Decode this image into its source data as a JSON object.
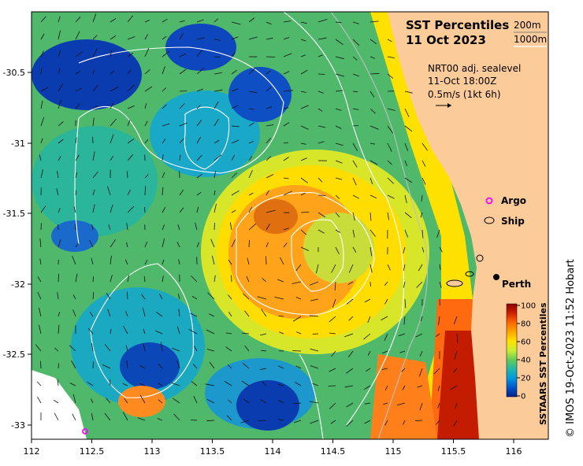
{
  "title": {
    "line1": "SST Percentiles",
    "line2": "11 Oct 2023"
  },
  "depth_key": {
    "shallow": "200m",
    "deep": "1000m"
  },
  "current_info": {
    "line1": "NRT00 adj. sealevel",
    "line2": "11-Oct 18:00Z",
    "line3": "0.5m/s (1kt 6h)"
  },
  "legend": {
    "argo": "Argo",
    "ship": "Ship"
  },
  "place": {
    "name": "Perth",
    "lon": 115.86,
    "lat": -31.95
  },
  "colorbar": {
    "label": "SSTAARS SST Percentiles",
    "ticks": [
      "100",
      "80",
      "60",
      "40",
      "20",
      "0"
    ],
    "colors": [
      "#8b0000",
      "#cc2200",
      "#ff6600",
      "#ffa500",
      "#ffe000",
      "#ccee33",
      "#66cc55",
      "#22b8a8",
      "#0099dd",
      "#0055cc",
      "#001f8c"
    ]
  },
  "credit": "© IMOS 19-Oct-2023 11:52 Hobart",
  "axes": {
    "x_ticks": [
      "112",
      "112.5",
      "113",
      "113.5",
      "114",
      "114.5",
      "115",
      "115.5",
      "116"
    ],
    "y_ticks": [
      "-30.5",
      "-31",
      "-31.5",
      "-32",
      "-32.5",
      "-33"
    ],
    "lon_range": [
      112,
      116.3
    ],
    "lat_range": [
      -33.1,
      -30.05
    ]
  },
  "colors": {
    "land": "#fccb9a",
    "warm_core": "#ff9a2a",
    "cold_core": "#0a3cb0"
  }
}
